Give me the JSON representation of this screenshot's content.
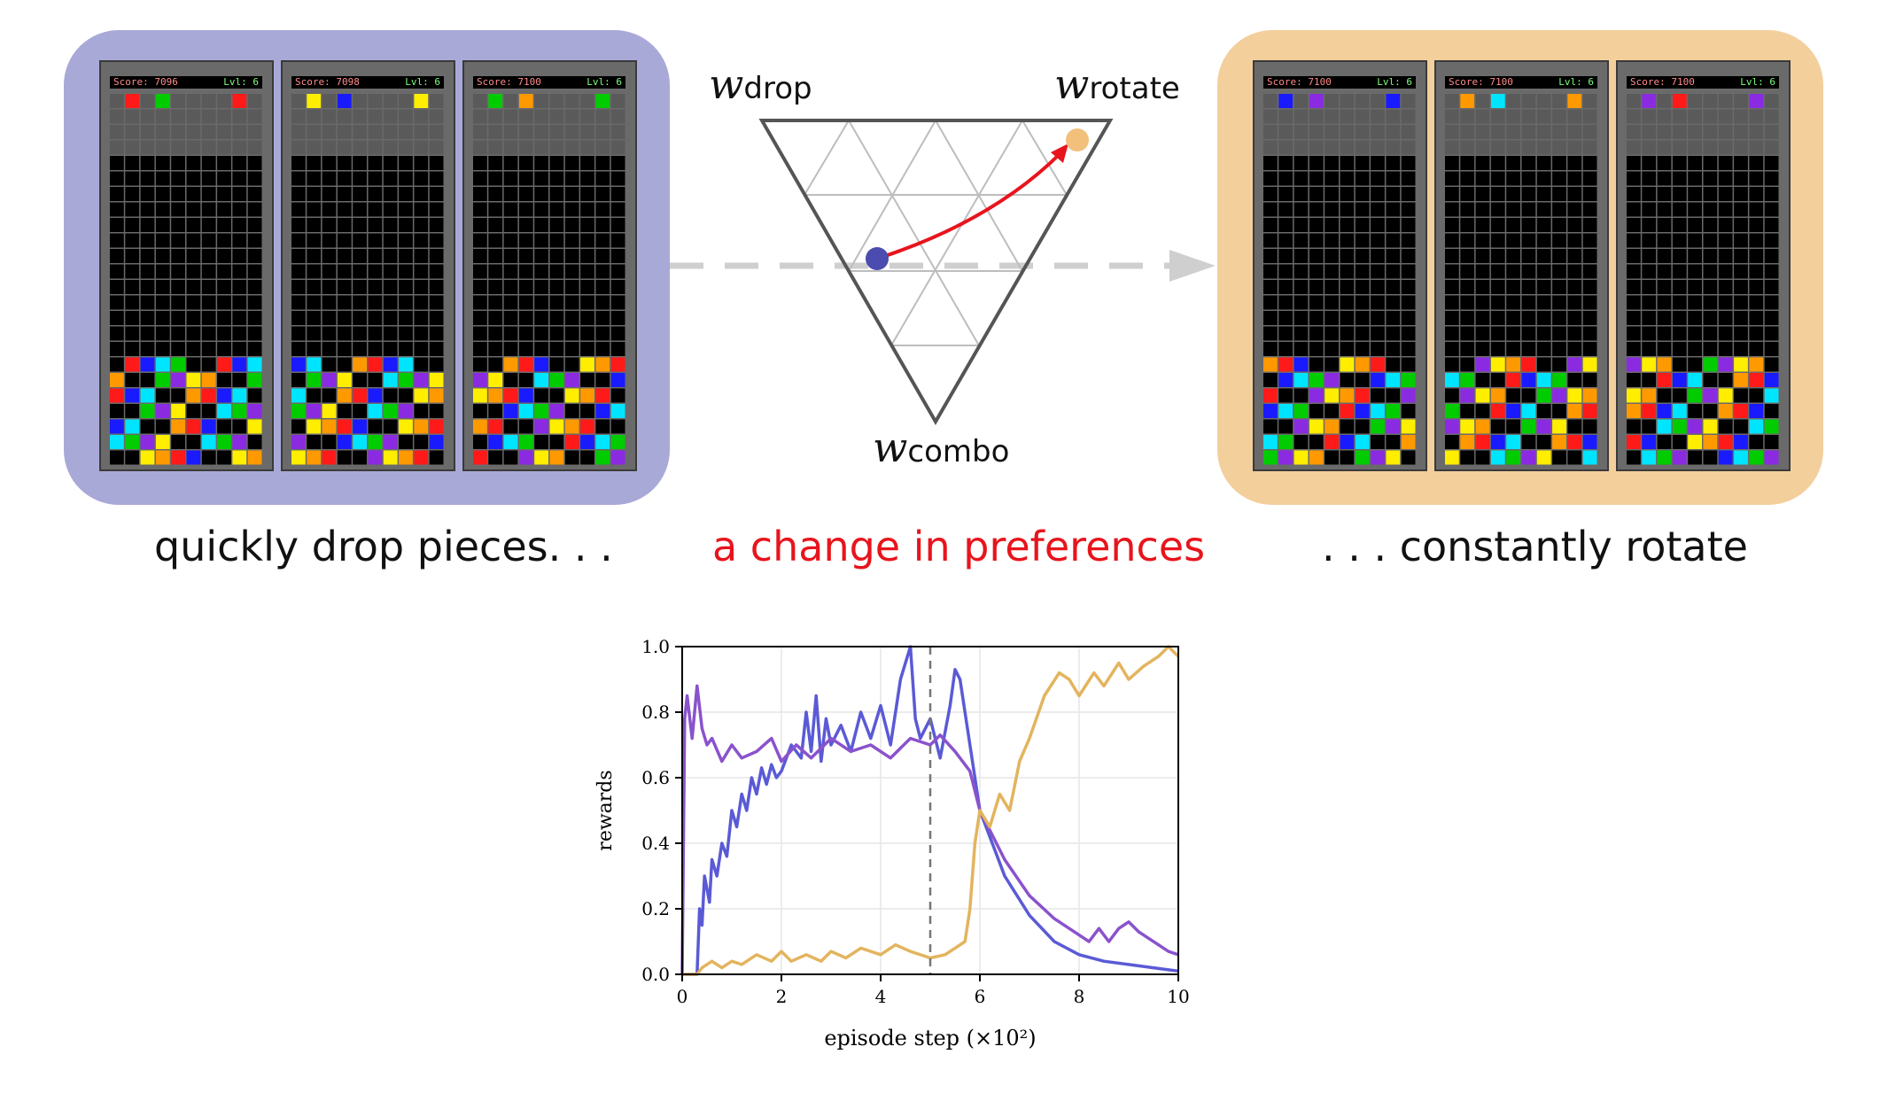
{
  "panels": {
    "left": {
      "boards": [
        {
          "score": "Score: 7096",
          "lvl": "Lvl: 6"
        },
        {
          "score": "Score: 7098",
          "lvl": "Lvl: 6"
        },
        {
          "score": "Score: 7100",
          "lvl": "Lvl: 6"
        }
      ],
      "caption": "quickly drop pieces. . ."
    },
    "right": {
      "boards": [
        {
          "score": "Score: 7100",
          "lvl": "Lvl: 6"
        },
        {
          "score": "Score: 7100",
          "lvl": "Lvl: 6"
        },
        {
          "score": "Score: 7100",
          "lvl": "Lvl: 6"
        }
      ],
      "caption": ". . . constantly rotate"
    }
  },
  "simplex": {
    "w_symbol": "w",
    "drop": "drop",
    "rotate": "rotate",
    "combo": "combo",
    "caption": "a change in preferences",
    "colors": {
      "start": "#4b4bb0",
      "end": "#f2c07a",
      "arrow": "#e8141c"
    }
  },
  "chart_data": {
    "type": "line",
    "xlabel": "episode step (×10²)",
    "ylabel": "rewards",
    "xlim": [
      0,
      10
    ],
    "ylim": [
      0,
      1
    ],
    "xticks": [
      "0",
      "2",
      "4",
      "6",
      "8",
      "10"
    ],
    "yticks": [
      "0.0",
      "0.2",
      "0.4",
      "0.6",
      "0.8",
      "1.0"
    ],
    "grid": true,
    "vline": 5,
    "series": [
      {
        "color": "#5a5ad6",
        "x": [
          0,
          0.05,
          0.08,
          0.3,
          0.35,
          0.4,
          0.45,
          0.55,
          0.6,
          0.7,
          0.8,
          0.9,
          1.0,
          1.1,
          1.2,
          1.3,
          1.4,
          1.5,
          1.6,
          1.7,
          1.8,
          1.9,
          2.0,
          2.2,
          2.4,
          2.5,
          2.6,
          2.7,
          2.8,
          2.9,
          3.0,
          3.2,
          3.4,
          3.6,
          3.8,
          4.0,
          4.2,
          4.4,
          4.6,
          4.7,
          4.8,
          5.0,
          5.2,
          5.4,
          5.5,
          5.6,
          5.8,
          6.0,
          6.5,
          7.0,
          7.5,
          8.0,
          8.5,
          9.0,
          9.5,
          10.0
        ],
        "y": [
          0.0,
          0.0,
          0.0,
          0.0,
          0.2,
          0.15,
          0.3,
          0.22,
          0.35,
          0.3,
          0.4,
          0.36,
          0.5,
          0.45,
          0.55,
          0.5,
          0.6,
          0.55,
          0.63,
          0.58,
          0.64,
          0.6,
          0.62,
          0.7,
          0.66,
          0.8,
          0.68,
          0.85,
          0.65,
          0.78,
          0.7,
          0.76,
          0.68,
          0.8,
          0.72,
          0.82,
          0.7,
          0.9,
          1.0,
          0.78,
          0.72,
          0.78,
          0.66,
          0.82,
          0.93,
          0.9,
          0.7,
          0.5,
          0.3,
          0.18,
          0.1,
          0.06,
          0.04,
          0.03,
          0.02,
          0.01
        ]
      },
      {
        "color": "#8a52cc",
        "x": [
          0,
          0.05,
          0.1,
          0.2,
          0.3,
          0.4,
          0.5,
          0.6,
          0.8,
          1.0,
          1.2,
          1.5,
          1.8,
          2.0,
          2.3,
          2.6,
          3.0,
          3.4,
          3.8,
          4.2,
          4.6,
          5.0,
          5.2,
          5.5,
          5.8,
          6.0,
          6.5,
          7.0,
          7.5,
          8.0,
          8.2,
          8.4,
          8.6,
          8.8,
          9.0,
          9.2,
          9.4,
          9.6,
          9.8,
          10.0
        ],
        "y": [
          0.0,
          0.78,
          0.85,
          0.72,
          0.88,
          0.75,
          0.7,
          0.72,
          0.65,
          0.7,
          0.66,
          0.68,
          0.72,
          0.65,
          0.7,
          0.66,
          0.72,
          0.68,
          0.7,
          0.66,
          0.72,
          0.7,
          0.73,
          0.68,
          0.62,
          0.5,
          0.35,
          0.24,
          0.17,
          0.12,
          0.1,
          0.14,
          0.1,
          0.14,
          0.16,
          0.13,
          0.11,
          0.09,
          0.07,
          0.06
        ]
      },
      {
        "color": "#e3b45e",
        "x": [
          0,
          0.3,
          0.4,
          0.6,
          0.8,
          1.0,
          1.2,
          1.5,
          1.8,
          2.0,
          2.2,
          2.5,
          2.8,
          3.0,
          3.3,
          3.6,
          4.0,
          4.3,
          4.6,
          5.0,
          5.3,
          5.5,
          5.7,
          5.8,
          5.9,
          6.0,
          6.2,
          6.4,
          6.6,
          6.8,
          7.0,
          7.3,
          7.6,
          7.8,
          8.0,
          8.3,
          8.5,
          8.8,
          9.0,
          9.3,
          9.6,
          9.8,
          10.0
        ],
        "y": [
          0.0,
          0.0,
          0.02,
          0.04,
          0.02,
          0.04,
          0.03,
          0.06,
          0.04,
          0.07,
          0.04,
          0.06,
          0.04,
          0.07,
          0.05,
          0.08,
          0.06,
          0.09,
          0.07,
          0.05,
          0.06,
          0.08,
          0.1,
          0.2,
          0.4,
          0.5,
          0.45,
          0.55,
          0.5,
          0.65,
          0.72,
          0.85,
          0.92,
          0.9,
          0.85,
          0.92,
          0.88,
          0.95,
          0.9,
          0.94,
          0.97,
          1.0,
          0.97
        ]
      }
    ]
  }
}
